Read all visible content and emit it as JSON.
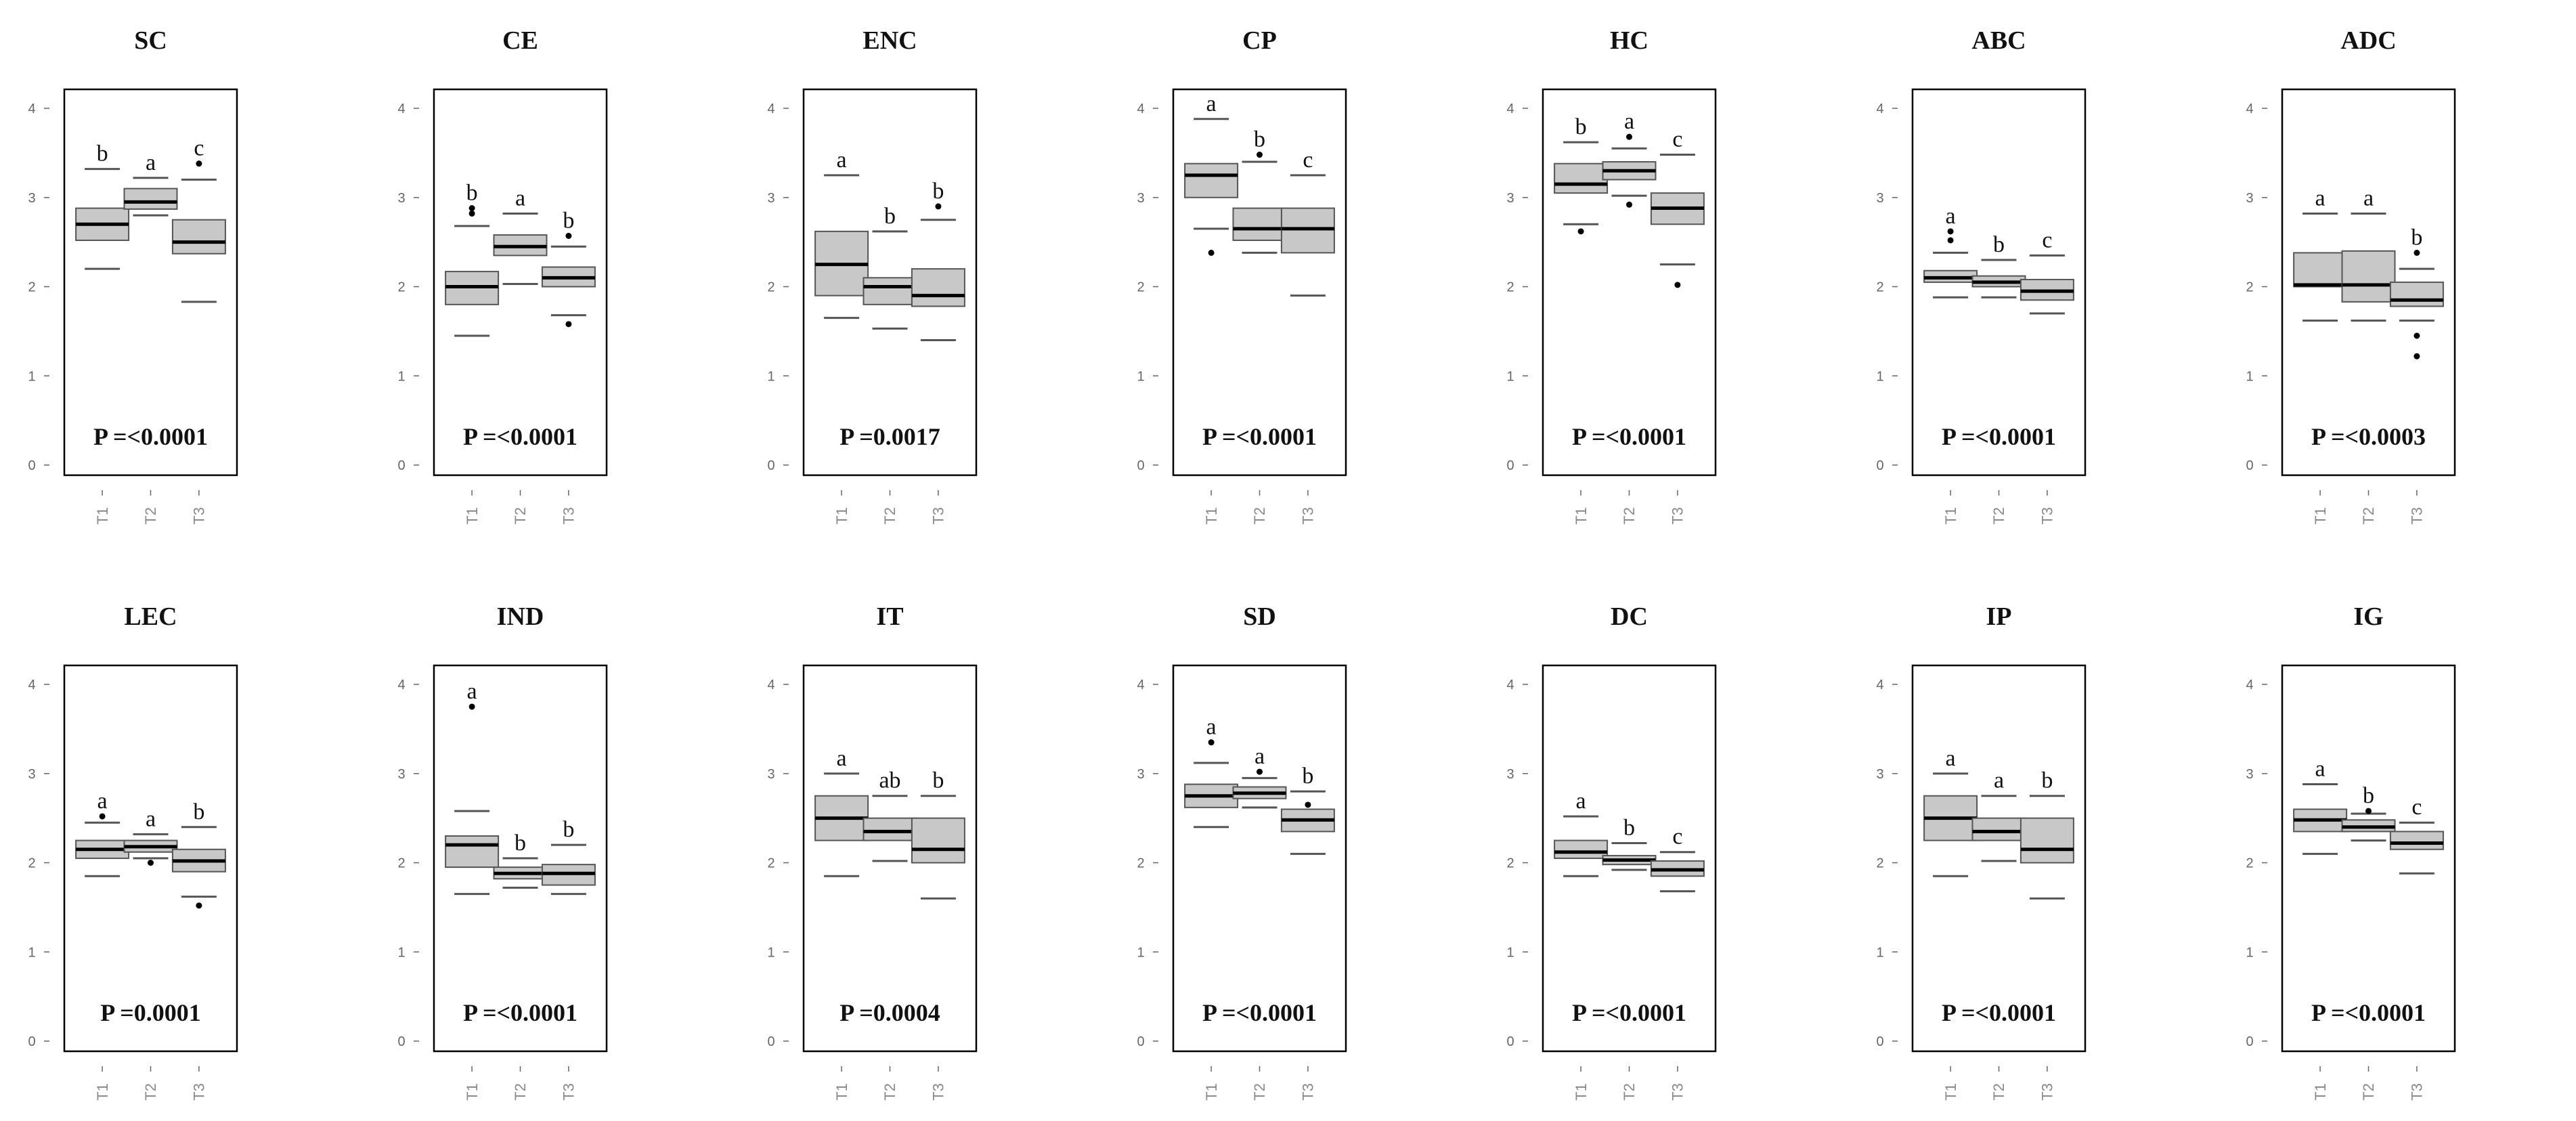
{
  "chart_data": [
    {
      "type": "boxplot",
      "title": "SC",
      "p_value": "P =<0.0001",
      "categories": [
        "T1",
        "T2",
        "T3"
      ],
      "ylim": [
        0,
        4
      ],
      "yticks": [
        0,
        1,
        2,
        3,
        4
      ],
      "boxes": [
        {
          "whisker_low": 2.2,
          "q1": 2.52,
          "median": 2.7,
          "q3": 2.88,
          "whisker_high": 3.32,
          "outliers": [],
          "letter": "b"
        },
        {
          "whisker_low": 2.8,
          "q1": 2.87,
          "median": 2.95,
          "q3": 3.1,
          "whisker_high": 3.22,
          "outliers": [],
          "letter": "a"
        },
        {
          "whisker_low": 1.83,
          "q1": 2.37,
          "median": 2.5,
          "q3": 2.75,
          "whisker_high": 3.2,
          "outliers": [
            3.38
          ],
          "letter": "c"
        }
      ]
    },
    {
      "type": "boxplot",
      "title": "CE",
      "p_value": "P =<0.0001",
      "categories": [
        "T1",
        "T2",
        "T3"
      ],
      "ylim": [
        0,
        4
      ],
      "yticks": [
        0,
        1,
        2,
        3,
        4
      ],
      "boxes": [
        {
          "whisker_low": 1.45,
          "q1": 1.8,
          "median": 2.0,
          "q3": 2.17,
          "whisker_high": 2.68,
          "outliers": [
            2.82,
            2.88
          ],
          "letter": "b"
        },
        {
          "whisker_low": 2.03,
          "q1": 2.35,
          "median": 2.45,
          "q3": 2.58,
          "whisker_high": 2.82,
          "outliers": [],
          "letter": "a"
        },
        {
          "whisker_low": 1.68,
          "q1": 2.0,
          "median": 2.1,
          "q3": 2.22,
          "whisker_high": 2.45,
          "outliers": [
            2.57,
            1.58
          ],
          "letter": "b"
        }
      ]
    },
    {
      "type": "boxplot",
      "title": "ENC",
      "p_value": "P =0.0017",
      "categories": [
        "T1",
        "T2",
        "T3"
      ],
      "ylim": [
        0,
        4
      ],
      "yticks": [
        0,
        1,
        2,
        3,
        4
      ],
      "boxes": [
        {
          "whisker_low": 1.65,
          "q1": 1.9,
          "median": 2.25,
          "q3": 2.62,
          "whisker_high": 3.25,
          "outliers": [],
          "letter": "a"
        },
        {
          "whisker_low": 1.53,
          "q1": 1.8,
          "median": 2.0,
          "q3": 2.1,
          "whisker_high": 2.62,
          "outliers": [],
          "letter": "b"
        },
        {
          "whisker_low": 1.4,
          "q1": 1.78,
          "median": 1.9,
          "q3": 2.2,
          "whisker_high": 2.75,
          "outliers": [
            2.9
          ],
          "letter": "b"
        }
      ]
    },
    {
      "type": "boxplot",
      "title": "CP",
      "p_value": "P =<0.0001",
      "categories": [
        "T1",
        "T2",
        "T3"
      ],
      "ylim": [
        0,
        4
      ],
      "yticks": [
        0,
        1,
        2,
        3,
        4
      ],
      "boxes": [
        {
          "whisker_low": 2.65,
          "q1": 3.0,
          "median": 3.25,
          "q3": 3.38,
          "whisker_high": 3.88,
          "outliers": [
            2.38
          ],
          "letter": "a"
        },
        {
          "whisker_low": 2.38,
          "q1": 2.52,
          "median": 2.65,
          "q3": 2.88,
          "whisker_high": 3.4,
          "outliers": [
            3.48
          ],
          "letter": "b"
        },
        {
          "whisker_low": 1.9,
          "q1": 2.38,
          "median": 2.65,
          "q3": 2.88,
          "whisker_high": 3.25,
          "outliers": [],
          "letter": "c"
        }
      ]
    },
    {
      "type": "boxplot",
      "title": "HC",
      "p_value": "P =<0.0001",
      "categories": [
        "T1",
        "T2",
        "T3"
      ],
      "ylim": [
        0,
        4
      ],
      "yticks": [
        0,
        1,
        2,
        3,
        4
      ],
      "boxes": [
        {
          "whisker_low": 2.7,
          "q1": 3.05,
          "median": 3.15,
          "q3": 3.38,
          "whisker_high": 3.62,
          "outliers": [
            2.62
          ],
          "letter": "b"
        },
        {
          "whisker_low": 3.02,
          "q1": 3.2,
          "median": 3.3,
          "q3": 3.4,
          "whisker_high": 3.55,
          "outliers": [
            3.68,
            2.92
          ],
          "letter": "a"
        },
        {
          "whisker_low": 2.25,
          "q1": 2.7,
          "median": 2.88,
          "q3": 3.05,
          "whisker_high": 3.48,
          "outliers": [
            2.02
          ],
          "letter": "c"
        }
      ]
    },
    {
      "type": "boxplot",
      "title": "ABC",
      "p_value": "P =<0.0001",
      "categories": [
        "T1",
        "T2",
        "T3"
      ],
      "ylim": [
        0,
        4
      ],
      "yticks": [
        0,
        1,
        2,
        3,
        4
      ],
      "boxes": [
        {
          "whisker_low": 1.88,
          "q1": 2.05,
          "median": 2.1,
          "q3": 2.18,
          "whisker_high": 2.38,
          "outliers": [
            2.52,
            2.62
          ],
          "letter": "a"
        },
        {
          "whisker_low": 1.88,
          "q1": 2.0,
          "median": 2.05,
          "q3": 2.12,
          "whisker_high": 2.3,
          "outliers": [],
          "letter": "b"
        },
        {
          "whisker_low": 1.7,
          "q1": 1.85,
          "median": 1.95,
          "q3": 2.08,
          "whisker_high": 2.35,
          "outliers": [],
          "letter": "c"
        }
      ]
    },
    {
      "type": "boxplot",
      "title": "ADC",
      "p_value": "P =<0.0003",
      "categories": [
        "T1",
        "T2",
        "T3"
      ],
      "ylim": [
        0,
        4
      ],
      "yticks": [
        0,
        1,
        2,
        3,
        4
      ],
      "boxes": [
        {
          "whisker_low": 1.62,
          "q1": 2.0,
          "median": 2.02,
          "q3": 2.38,
          "whisker_high": 2.82,
          "outliers": [],
          "letter": "a"
        },
        {
          "whisker_low": 1.62,
          "q1": 1.83,
          "median": 2.02,
          "q3": 2.4,
          "whisker_high": 2.82,
          "outliers": [],
          "letter": "a"
        },
        {
          "whisker_low": 1.62,
          "q1": 1.78,
          "median": 1.85,
          "q3": 2.05,
          "whisker_high": 2.2,
          "outliers": [
            2.38,
            1.45,
            1.22
          ],
          "letter": "b"
        }
      ]
    },
    {
      "type": "boxplot",
      "title": "LEC",
      "p_value": "P =0.0001",
      "categories": [
        "T1",
        "T2",
        "T3"
      ],
      "ylim": [
        0,
        4
      ],
      "yticks": [
        0,
        1,
        2,
        3,
        4
      ],
      "boxes": [
        {
          "whisker_low": 1.85,
          "q1": 2.05,
          "median": 2.15,
          "q3": 2.25,
          "whisker_high": 2.45,
          "outliers": [
            2.52
          ],
          "letter": "a"
        },
        {
          "whisker_low": 2.05,
          "q1": 2.12,
          "median": 2.18,
          "q3": 2.25,
          "whisker_high": 2.32,
          "outliers": [
            2.0
          ],
          "letter": "a"
        },
        {
          "whisker_low": 1.62,
          "q1": 1.9,
          "median": 2.02,
          "q3": 2.15,
          "whisker_high": 2.4,
          "outliers": [
            1.52
          ],
          "letter": "b"
        }
      ]
    },
    {
      "type": "boxplot",
      "title": "IND",
      "p_value": "P =<0.0001",
      "categories": [
        "T1",
        "T2",
        "T3"
      ],
      "ylim": [
        0,
        4
      ],
      "yticks": [
        0,
        1,
        2,
        3,
        4
      ],
      "boxes": [
        {
          "whisker_low": 1.65,
          "q1": 1.95,
          "median": 2.2,
          "q3": 2.3,
          "whisker_high": 2.58,
          "outliers": [
            3.75
          ],
          "letter": "a"
        },
        {
          "whisker_low": 1.72,
          "q1": 1.82,
          "median": 1.88,
          "q3": 1.95,
          "whisker_high": 2.05,
          "outliers": [],
          "letter": "b"
        },
        {
          "whisker_low": 1.65,
          "q1": 1.75,
          "median": 1.88,
          "q3": 1.98,
          "whisker_high": 2.2,
          "outliers": [],
          "letter": "b"
        }
      ]
    },
    {
      "type": "boxplot",
      "title": "IT",
      "p_value": "P =0.0004",
      "categories": [
        "T1",
        "T2",
        "T3"
      ],
      "ylim": [
        0,
        4
      ],
      "yticks": [
        0,
        1,
        2,
        3,
        4
      ],
      "boxes": [
        {
          "whisker_low": 1.85,
          "q1": 2.25,
          "median": 2.5,
          "q3": 2.75,
          "whisker_high": 3.0,
          "outliers": [],
          "letter": "a"
        },
        {
          "whisker_low": 2.02,
          "q1": 2.25,
          "median": 2.35,
          "q3": 2.5,
          "whisker_high": 2.75,
          "outliers": [],
          "letter": "ab"
        },
        {
          "whisker_low": 1.6,
          "q1": 2.0,
          "median": 2.15,
          "q3": 2.5,
          "whisker_high": 2.75,
          "outliers": [],
          "letter": "b"
        }
      ]
    },
    {
      "type": "boxplot",
      "title": "SD",
      "p_value": "P =<0.0001",
      "categories": [
        "T1",
        "T2",
        "T3"
      ],
      "ylim": [
        0,
        4
      ],
      "yticks": [
        0,
        1,
        2,
        3,
        4
      ],
      "boxes": [
        {
          "whisker_low": 2.4,
          "q1": 2.62,
          "median": 2.75,
          "q3": 2.88,
          "whisker_high": 3.12,
          "outliers": [
            3.35
          ],
          "letter": "a"
        },
        {
          "whisker_low": 2.62,
          "q1": 2.72,
          "median": 2.78,
          "q3": 2.85,
          "whisker_high": 2.95,
          "outliers": [
            3.02
          ],
          "letter": "a"
        },
        {
          "whisker_low": 2.1,
          "q1": 2.35,
          "median": 2.48,
          "q3": 2.6,
          "whisker_high": 2.8,
          "outliers": [
            2.65
          ],
          "letter": "b"
        }
      ]
    },
    {
      "type": "boxplot",
      "title": "DC",
      "p_value": "P =<0.0001",
      "categories": [
        "T1",
        "T2",
        "T3"
      ],
      "ylim": [
        0,
        4
      ],
      "yticks": [
        0,
        1,
        2,
        3,
        4
      ],
      "boxes": [
        {
          "whisker_low": 1.85,
          "q1": 2.05,
          "median": 2.12,
          "q3": 2.25,
          "whisker_high": 2.52,
          "outliers": [],
          "letter": "a"
        },
        {
          "whisker_low": 1.92,
          "q1": 1.98,
          "median": 2.03,
          "q3": 2.08,
          "whisker_high": 2.22,
          "outliers": [],
          "letter": "b"
        },
        {
          "whisker_low": 1.68,
          "q1": 1.85,
          "median": 1.92,
          "q3": 2.02,
          "whisker_high": 2.12,
          "outliers": [],
          "letter": "c"
        }
      ]
    },
    {
      "type": "boxplot",
      "title": "IP",
      "p_value": "P =<0.0001",
      "categories": [
        "T1",
        "T2",
        "T3"
      ],
      "ylim": [
        0,
        4
      ],
      "yticks": [
        0,
        1,
        2,
        3,
        4
      ],
      "boxes": [
        {
          "whisker_low": 1.85,
          "q1": 2.25,
          "median": 2.5,
          "q3": 2.75,
          "whisker_high": 3.0,
          "outliers": [],
          "letter": "a"
        },
        {
          "whisker_low": 2.02,
          "q1": 2.25,
          "median": 2.35,
          "q3": 2.5,
          "whisker_high": 2.75,
          "outliers": [],
          "letter": "a"
        },
        {
          "whisker_low": 1.6,
          "q1": 2.0,
          "median": 2.15,
          "q3": 2.5,
          "whisker_high": 2.75,
          "outliers": [],
          "letter": "b"
        }
      ]
    },
    {
      "type": "boxplot",
      "title": "IG",
      "p_value": "P =<0.0001",
      "categories": [
        "T1",
        "T2",
        "T3"
      ],
      "ylim": [
        0,
        4
      ],
      "yticks": [
        0,
        1,
        2,
        3,
        4
      ],
      "boxes": [
        {
          "whisker_low": 2.1,
          "q1": 2.35,
          "median": 2.48,
          "q3": 2.6,
          "whisker_high": 2.88,
          "outliers": [],
          "letter": "a"
        },
        {
          "whisker_low": 2.25,
          "q1": 2.35,
          "median": 2.4,
          "q3": 2.48,
          "whisker_high": 2.55,
          "outliers": [
            2.58
          ],
          "letter": "b"
        },
        {
          "whisker_low": 1.88,
          "q1": 2.15,
          "median": 2.22,
          "q3": 2.35,
          "whisker_high": 2.45,
          "outliers": [],
          "letter": "c"
        }
      ]
    }
  ],
  "colors": {
    "box_fill": "#c8c8c8",
    "box_stroke": "#555555",
    "median": "#000000",
    "frame": "#000000",
    "whisker": "#555555",
    "outlier": "#000000"
  }
}
